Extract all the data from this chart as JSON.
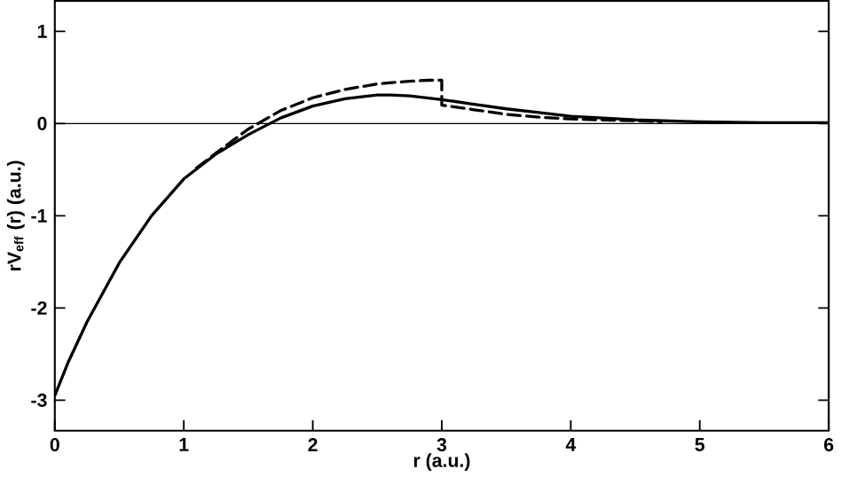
{
  "chart_data": {
    "type": "line",
    "xlabel": "r (a.u.)",
    "ylabel": "rV$_{eff}$ (r)  (a.u.)",
    "xlim": [
      0,
      6
    ],
    "ylim": [
      -3.33,
      1.33
    ],
    "xticks": [
      0,
      1,
      2,
      3,
      4,
      5,
      6
    ],
    "yticks": [
      -3,
      -2,
      -1,
      0,
      1
    ],
    "marker": "none",
    "series": [
      {
        "color": "#000000",
        "line_style": "solid",
        "x": [
          0,
          0.1,
          0.25,
          0.5,
          0.75,
          1,
          1.25,
          1.5,
          1.75,
          2,
          2.25,
          2.5,
          2.6,
          2.75,
          3,
          3.25,
          3.5,
          3.75,
          4,
          4.5,
          5,
          5.5,
          6
        ],
        "values": [
          -2.95,
          -2.6,
          -2.15,
          -1.51,
          -1.0,
          -0.6,
          -0.33,
          -0.12,
          0.06,
          0.19,
          0.27,
          0.31,
          0.31,
          0.3,
          0.26,
          0.21,
          0.16,
          0.12,
          0.08,
          0.04,
          0.02,
          0.01,
          0.01
        ]
      },
      {
        "color": "#000000",
        "line_style": "dashed",
        "x": [
          1.1,
          1.25,
          1.5,
          1.75,
          2,
          2.25,
          2.5,
          2.75,
          2.9,
          3,
          3,
          3.25,
          3.5,
          3.75,
          4,
          4.25,
          4.5,
          4.7
        ],
        "values": [
          -0.48,
          -0.32,
          -0.06,
          0.14,
          0.28,
          0.37,
          0.43,
          0.46,
          0.47,
          0.47,
          0.2,
          0.15,
          0.1,
          0.07,
          0.05,
          0.04,
          0.03,
          0.02
        ]
      }
    ],
    "ref_lines": [
      {
        "axis": "y",
        "value": 0,
        "color": "#000000",
        "line_style": "solid"
      }
    ]
  }
}
